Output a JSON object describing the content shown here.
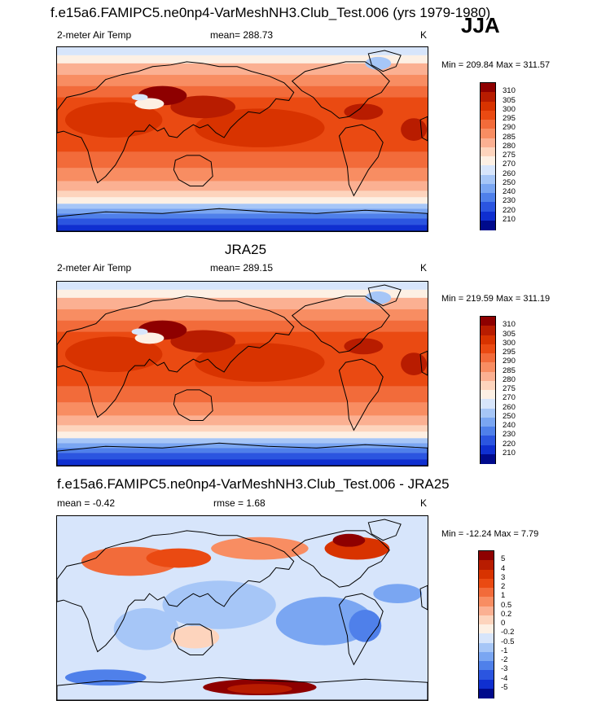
{
  "title": "f.e15a6.FAMIPC5.ne0np4-VarMeshNH3.Club_Test.006 (yrs 1979-1980)",
  "season": "JJA",
  "chart_data": [
    {
      "type": "heatmap",
      "id": "model",
      "variable": "2-meter Air Temp",
      "stat_label": "mean=",
      "stat_value": "288.73",
      "units": "K",
      "min_label": "Min =",
      "min_value": "209.84",
      "max_label": "Max =",
      "max_value": "311.57",
      "levels": [
        "310",
        "305",
        "300",
        "295",
        "290",
        "285",
        "280",
        "275",
        "270",
        "260",
        "250",
        "240",
        "230",
        "220",
        "210"
      ],
      "colors": [
        "#8e0000",
        "#b81c00",
        "#d83300",
        "#ea4a12",
        "#f26b3a",
        "#f88d62",
        "#fbb092",
        "#fdd4bd",
        "#fdf0e4",
        "#d7e5fb",
        "#a6c6f7",
        "#7aa6f2",
        "#4f80ea",
        "#2b55e0",
        "#0f2fd0",
        "#000a8c"
      ]
    },
    {
      "type": "heatmap",
      "id": "obs",
      "title": "JRA25",
      "variable": "2-meter Air Temp",
      "stat_label": "mean=",
      "stat_value": "289.15",
      "units": "K",
      "min_label": "Min =",
      "min_value": "219.59",
      "max_label": "Max =",
      "max_value": "311.19",
      "levels": [
        "310",
        "305",
        "300",
        "295",
        "290",
        "285",
        "280",
        "275",
        "270",
        "260",
        "250",
        "240",
        "230",
        "220",
        "210"
      ],
      "colors": [
        "#8e0000",
        "#b81c00",
        "#d83300",
        "#ea4a12",
        "#f26b3a",
        "#f88d62",
        "#fbb092",
        "#fdd4bd",
        "#fdf0e4",
        "#d7e5fb",
        "#a6c6f7",
        "#7aa6f2",
        "#4f80ea",
        "#2b55e0",
        "#0f2fd0",
        "#000a8c"
      ]
    },
    {
      "type": "heatmap",
      "id": "diff",
      "title": "f.e15a6.FAMIPC5.ne0np4-VarMeshNH3.Club_Test.006 - JRA25",
      "stat_label": "mean =",
      "stat_value": "-0.42",
      "rmse_label": "rmse =",
      "rmse_value": "1.68",
      "units": "K",
      "min_label": "Min =",
      "min_value": "-12.24",
      "max_label": "Max =",
      "max_value": "7.79",
      "levels": [
        "5",
        "4",
        "3",
        "2",
        "1",
        "0.5",
        "0.2",
        "0",
        "-0.2",
        "-0.5",
        "-1",
        "-2",
        "-3",
        "-4",
        "-5"
      ],
      "colors": [
        "#8e0000",
        "#b81c00",
        "#d83300",
        "#ea4a12",
        "#f26b3a",
        "#f88d62",
        "#fbb092",
        "#fdd4bd",
        "#fdf0e4",
        "#d7e5fb",
        "#a6c6f7",
        "#7aa6f2",
        "#4f80ea",
        "#2b55e0",
        "#0f2fd0",
        "#000a8c"
      ]
    }
  ]
}
